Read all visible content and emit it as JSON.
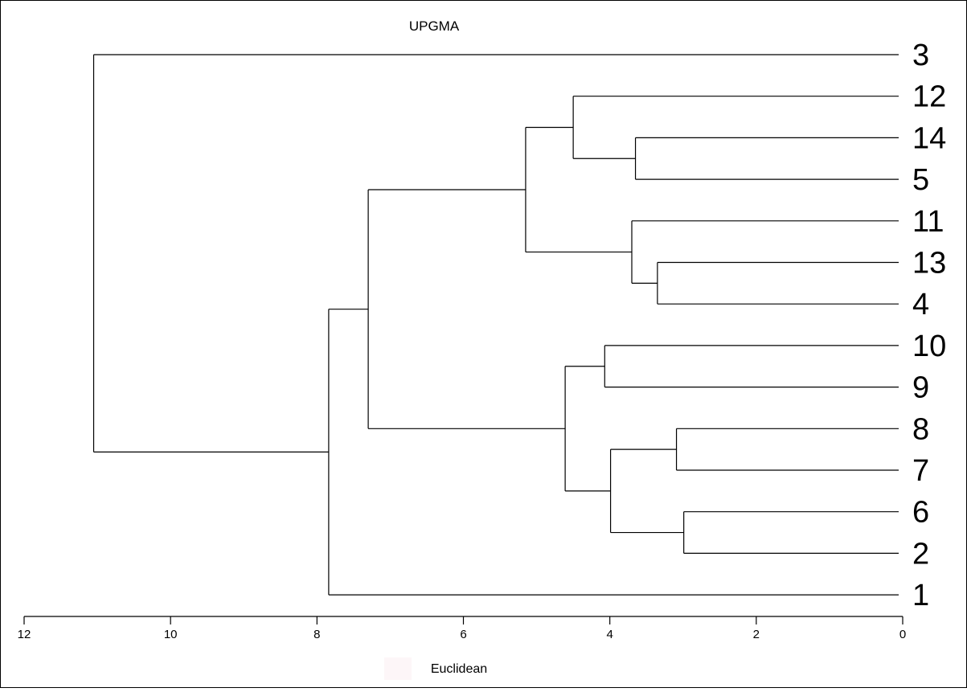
{
  "chart_data": {
    "type": "dendrogram",
    "title": "UPGMA",
    "xlabel": "Euclidean",
    "xlim": [
      12,
      0
    ],
    "x_ticks": [
      "12",
      "10",
      "8",
      "6",
      "4",
      "2",
      "0"
    ],
    "leaves": [
      "3",
      "12",
      "14",
      "5",
      "11",
      "13",
      "4",
      "10",
      "9",
      "8",
      "7",
      "6",
      "2",
      "1"
    ],
    "merges": [
      {
        "id": "c1",
        "children": [
          "14",
          "5"
        ],
        "height": 3.65
      },
      {
        "id": "c2",
        "children": [
          "12",
          "c1"
        ],
        "height": 4.5
      },
      {
        "id": "c3",
        "children": [
          "13",
          "4"
        ],
        "height": 3.35
      },
      {
        "id": "c4",
        "children": [
          "11",
          "c3"
        ],
        "height": 3.7
      },
      {
        "id": "c5",
        "children": [
          "c2",
          "c4"
        ],
        "height": 5.15
      },
      {
        "id": "c6",
        "children": [
          "10",
          "9"
        ],
        "height": 4.07
      },
      {
        "id": "c7",
        "children": [
          "8",
          "7"
        ],
        "height": 3.09
      },
      {
        "id": "c8",
        "children": [
          "6",
          "2"
        ],
        "height": 2.99
      },
      {
        "id": "c9",
        "children": [
          "c7",
          "c8"
        ],
        "height": 3.99
      },
      {
        "id": "c10",
        "children": [
          "c6",
          "c9"
        ],
        "height": 4.61
      },
      {
        "id": "c11",
        "children": [
          "c5",
          "c10"
        ],
        "height": 7.3
      },
      {
        "id": "c12",
        "children": [
          "c11",
          "1"
        ],
        "height": 7.84
      },
      {
        "id": "c13",
        "children": [
          "3",
          "c12"
        ],
        "height": 11.05
      }
    ]
  }
}
